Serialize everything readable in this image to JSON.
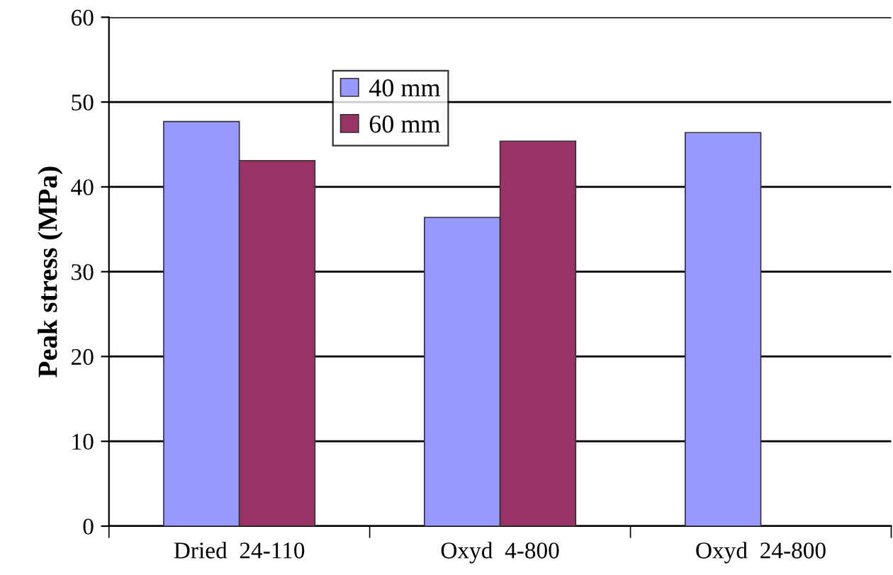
{
  "chart_data": {
    "type": "bar",
    "ylabel": "Peak stress (MPa)",
    "categories": [
      "Dried  24-110",
      "Oxyd  4-800",
      "Oxyd  24-800"
    ],
    "series": [
      {
        "name": "40 mm",
        "color": "#9999ff",
        "values": [
          47.7,
          36.4,
          46.4
        ]
      },
      {
        "name": "60 mm",
        "color": "#993366",
        "values": [
          43.1,
          45.4,
          null
        ]
      }
    ],
    "ylim": [
      0,
      60
    ],
    "yticks": [
      0,
      10,
      20,
      30,
      40,
      50,
      60
    ],
    "grid": "y",
    "legend": "top"
  }
}
